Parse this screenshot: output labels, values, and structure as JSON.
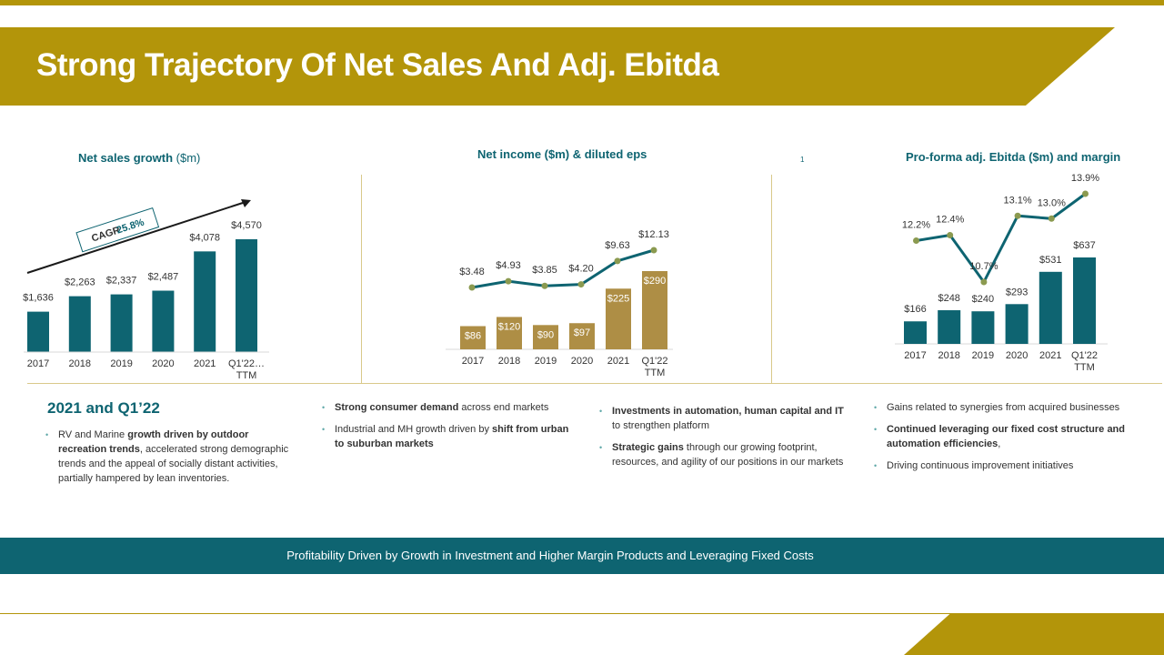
{
  "title": "Strong Trajectory Of Net Sales And Adj. Ebitda",
  "colors": {
    "gold": "#b3950a",
    "teal": "#0e6471",
    "olive_bar": "#ae8e45",
    "dot": "#8b9a50"
  },
  "charts": {
    "net_sales": {
      "title_bold": "Net sales growth",
      "title_light": "($m)",
      "cagr_label": "CAGR",
      "cagr_value": "25.8%"
    },
    "net_income": {
      "title": "Net income ($m) & diluted eps",
      "note": "1"
    },
    "ebitda": {
      "title": "Pro-forma adj. Ebitda ($m) and margin"
    }
  },
  "chart_data": [
    {
      "type": "bar",
      "title": "Net sales growth ($m)",
      "categories": [
        "2017",
        "2018",
        "2019",
        "2020",
        "2021",
        "Q1'22 TTM"
      ],
      "category_labels": [
        "2017",
        "2018",
        "2019",
        "2020",
        "2021",
        "Q1'22…"
      ],
      "category_sublabels": [
        "",
        "",
        "",
        "",
        "",
        "TTM"
      ],
      "values": [
        1636,
        2263,
        2337,
        2487,
        4078,
        4570
      ],
      "value_labels": [
        "$1,636",
        "$2,263",
        "$2,337",
        "$2,487",
        "$4,078",
        "$4,570"
      ],
      "annotation": "CAGR 25.8%",
      "ylim": [
        0,
        4570
      ]
    },
    {
      "type": "bar",
      "title": "Net income ($m) & diluted eps",
      "categories": [
        "2017",
        "2018",
        "2019",
        "2020",
        "2021",
        "Q1'22 TTM"
      ],
      "category_labels": [
        "2017",
        "2018",
        "2019",
        "2020",
        "2021",
        "Q1'22"
      ],
      "category_sublabels": [
        "",
        "",
        "",
        "",
        "",
        "TTM"
      ],
      "series": [
        {
          "name": "Net income",
          "type": "bar",
          "values": [
            86,
            120,
            90,
            97,
            225,
            290
          ],
          "labels": [
            "$86",
            "$120",
            "$90",
            "$97",
            "$225",
            "$290"
          ]
        },
        {
          "name": "Diluted eps",
          "type": "line",
          "values": [
            3.48,
            4.93,
            3.85,
            4.2,
            9.63,
            12.13
          ],
          "labels": [
            "$3.48",
            "$4.93",
            "$3.85",
            "$4.20",
            "$9.63",
            "$12.13"
          ]
        }
      ]
    },
    {
      "type": "bar",
      "title": "Pro-forma adj. Ebitda ($m) and margin",
      "categories": [
        "2017",
        "2018",
        "2019",
        "2020",
        "2021",
        "Q1'22 TTM"
      ],
      "category_labels": [
        "2017",
        "2018",
        "2019",
        "2020",
        "2021",
        "Q1'22"
      ],
      "category_sublabels": [
        "",
        "",
        "",
        "",
        "",
        "TTM"
      ],
      "series": [
        {
          "name": "Adj. Ebitda",
          "type": "bar",
          "values": [
            166,
            248,
            240,
            293,
            531,
            637
          ],
          "labels": [
            "$166",
            "$248",
            "$240",
            "$293",
            "$531",
            "$637"
          ]
        },
        {
          "name": "Margin",
          "type": "line",
          "values": [
            12.2,
            12.4,
            10.7,
            13.1,
            13.0,
            13.9
          ],
          "labels": [
            "12.2%",
            "12.4%",
            "10.7%",
            "13.1%",
            "13.0%",
            "13.9%"
          ]
        }
      ]
    }
  ],
  "section": {
    "heading": "2021 and   Q1’22"
  },
  "bullets": {
    "col1": [
      {
        "pre": "RV and Marine ",
        "bold": "growth driven by  outdoor recreation trends",
        "post": ",  accelerated strong demographic  trends and the appeal of socially distant activities, partially  hampered by lean inventories."
      }
    ],
    "col2": [
      {
        "pre": "",
        "bold": "Strong consumer demand",
        "post": " across  end markets"
      },
      {
        "pre": "Industrial and MH growth driven  by ",
        "bold": "shift from urban  to suburban  markets",
        "post": ""
      }
    ],
    "col3": [
      {
        "pre": "",
        "bold": "Investments in automation,  human capital  and IT",
        "post": " to  strengthen platform"
      },
      {
        "pre": "",
        "bold": "Strategic gains",
        "post": " through our  growing footprint, resources, and  agility of our positions in our markets"
      }
    ],
    "col4": [
      {
        "pre": "Gains  related  to  synergies  from   acquired businesses",
        "bold": "",
        "post": ""
      },
      {
        "pre": "",
        "bold": "Continued leveraging our fixed  cost structure and automation  efficiencies",
        "post": ","
      },
      {
        "pre": "Driving continuous improvement  initiatives",
        "bold": "",
        "post": ""
      }
    ]
  },
  "footer": "Profitability  Driven by Growth  in Investment and Higher Margin Products and Leveraging Fixed Costs"
}
